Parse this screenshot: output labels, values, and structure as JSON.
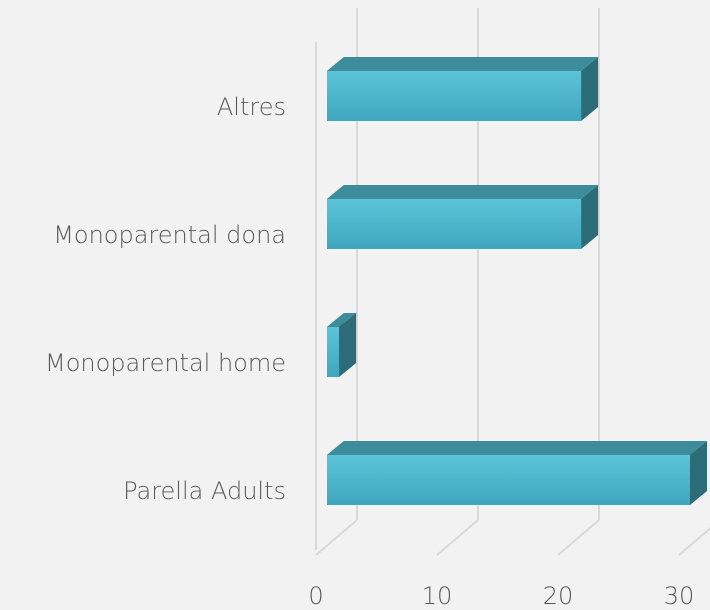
{
  "chart_data": {
    "type": "bar3d_horizontal",
    "categories": [
      "Altres",
      "Monoparental dona",
      "Monoparental home",
      "Parella Adults"
    ],
    "values": [
      21,
      21,
      1,
      30
    ],
    "color": "#4bb5cc",
    "xlim": [
      0,
      30
    ],
    "xticks": [
      0,
      10,
      20,
      30
    ],
    "grid": true
  }
}
